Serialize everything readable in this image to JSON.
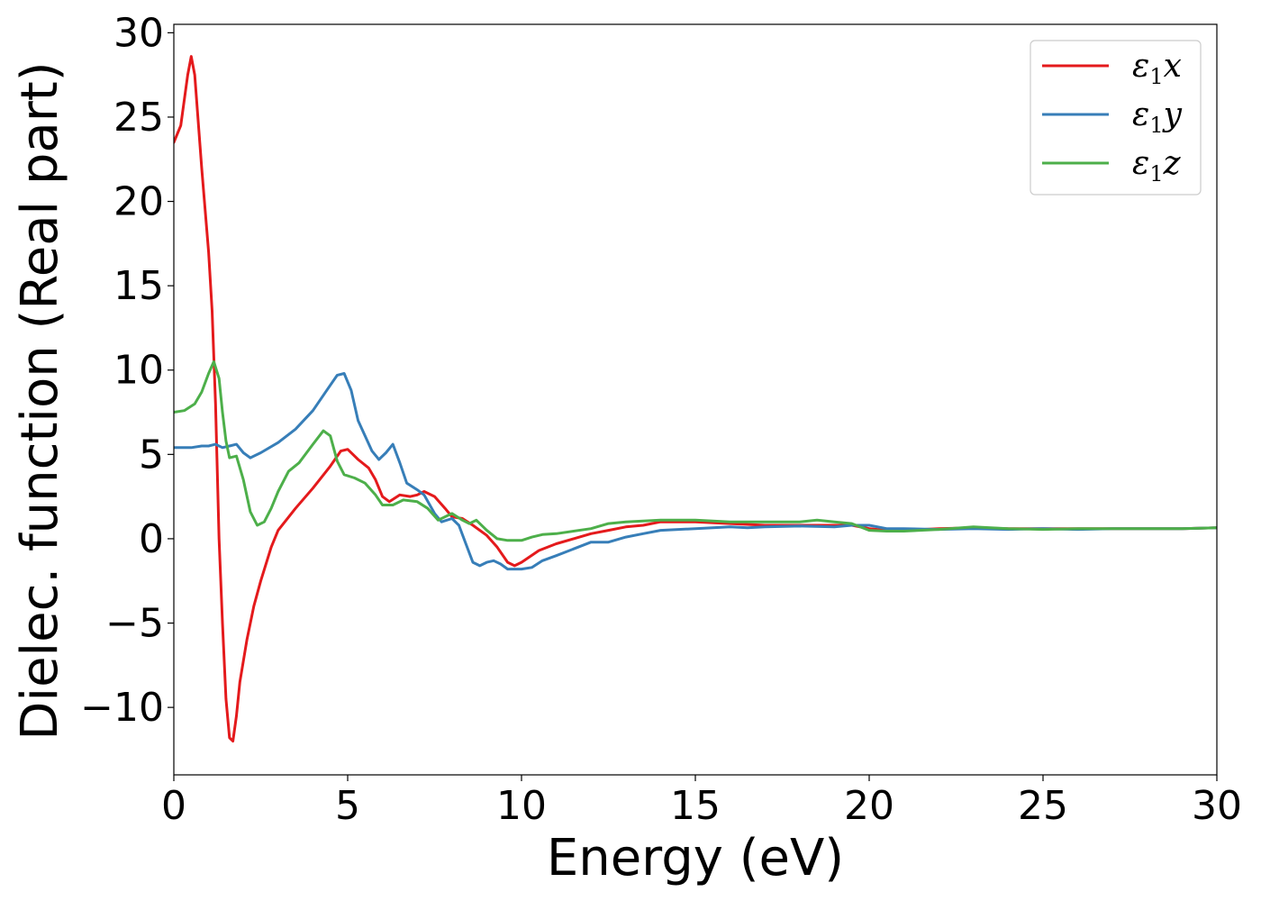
{
  "chart_data": {
    "type": "line",
    "title": "",
    "xlabel": "Energy (eV)",
    "ylabel": "Dielec. function (Real part)",
    "xlim": [
      0,
      30
    ],
    "ylim": [
      -14,
      30.5
    ],
    "xticks": [
      0,
      5,
      10,
      15,
      20,
      25,
      30
    ],
    "xtick_labels": [
      "0",
      "5",
      "10",
      "15",
      "20",
      "25",
      "30"
    ],
    "yticks": [
      -10,
      -5,
      0,
      5,
      10,
      15,
      20,
      25,
      30
    ],
    "ytick_labels": [
      "−10",
      "−5",
      "0",
      "5",
      "10",
      "15",
      "20",
      "25",
      "30"
    ],
    "grid": false,
    "legend_position": "top-right",
    "series": [
      {
        "name": "ε1x",
        "base": "ε",
        "sub": "1",
        "var": "x",
        "color": "#e41a1c",
        "points": [
          [
            0,
            23.5
          ],
          [
            0.2,
            24.5
          ],
          [
            0.4,
            27.5
          ],
          [
            0.5,
            28.6
          ],
          [
            0.6,
            27.5
          ],
          [
            0.8,
            22
          ],
          [
            1.0,
            17
          ],
          [
            1.1,
            13.5
          ],
          [
            1.2,
            8
          ],
          [
            1.3,
            0
          ],
          [
            1.4,
            -5
          ],
          [
            1.5,
            -9.5
          ],
          [
            1.6,
            -11.8
          ],
          [
            1.7,
            -12
          ],
          [
            1.8,
            -10.5
          ],
          [
            1.9,
            -8.5
          ],
          [
            2.1,
            -6
          ],
          [
            2.3,
            -4
          ],
          [
            2.5,
            -2.5
          ],
          [
            2.8,
            -0.5
          ],
          [
            3.0,
            0.5
          ],
          [
            3.5,
            1.8
          ],
          [
            4.0,
            3.0
          ],
          [
            4.5,
            4.3
          ],
          [
            4.8,
            5.2
          ],
          [
            5.0,
            5.3
          ],
          [
            5.3,
            4.7
          ],
          [
            5.6,
            4.2
          ],
          [
            5.8,
            3.5
          ],
          [
            6.0,
            2.5
          ],
          [
            6.2,
            2.2
          ],
          [
            6.5,
            2.6
          ],
          [
            6.8,
            2.5
          ],
          [
            7.0,
            2.6
          ],
          [
            7.2,
            2.8
          ],
          [
            7.5,
            2.5
          ],
          [
            7.8,
            1.8
          ],
          [
            8.0,
            1.3
          ],
          [
            8.3,
            1.2
          ],
          [
            8.6,
            0.8
          ],
          [
            9.0,
            0.2
          ],
          [
            9.3,
            -0.5
          ],
          [
            9.6,
            -1.4
          ],
          [
            9.8,
            -1.6
          ],
          [
            10.0,
            -1.4
          ],
          [
            10.5,
            -0.7
          ],
          [
            11.0,
            -0.3
          ],
          [
            11.5,
            0
          ],
          [
            12.0,
            0.3
          ],
          [
            12.5,
            0.5
          ],
          [
            13.0,
            0.7
          ],
          [
            13.5,
            0.8
          ],
          [
            14.0,
            1.0
          ],
          [
            15.0,
            1.0
          ],
          [
            16.0,
            0.9
          ],
          [
            17.0,
            0.8
          ],
          [
            18.0,
            0.8
          ],
          [
            19.0,
            0.8
          ],
          [
            19.5,
            0.8
          ],
          [
            20.0,
            0.6
          ],
          [
            20.5,
            0.5
          ],
          [
            21.0,
            0.5
          ],
          [
            22.0,
            0.6
          ],
          [
            23.0,
            0.65
          ],
          [
            24.0,
            0.6
          ],
          [
            25.0,
            0.6
          ],
          [
            26.0,
            0.6
          ],
          [
            27.0,
            0.6
          ],
          [
            28.0,
            0.6
          ],
          [
            29.0,
            0.6
          ],
          [
            30.0,
            0.65
          ]
        ]
      },
      {
        "name": "ε1y",
        "base": "ε",
        "sub": "1",
        "var": "y",
        "color": "#377eb8",
        "points": [
          [
            0,
            5.4
          ],
          [
            0.5,
            5.4
          ],
          [
            0.8,
            5.5
          ],
          [
            1.0,
            5.5
          ],
          [
            1.2,
            5.6
          ],
          [
            1.4,
            5.4
          ],
          [
            1.6,
            5.5
          ],
          [
            1.8,
            5.6
          ],
          [
            2.0,
            5.1
          ],
          [
            2.2,
            4.8
          ],
          [
            2.5,
            5.1
          ],
          [
            3.0,
            5.7
          ],
          [
            3.5,
            6.5
          ],
          [
            4.0,
            7.6
          ],
          [
            4.4,
            8.8
          ],
          [
            4.7,
            9.7
          ],
          [
            4.9,
            9.8
          ],
          [
            5.1,
            8.8
          ],
          [
            5.3,
            7.0
          ],
          [
            5.5,
            6.1
          ],
          [
            5.7,
            5.2
          ],
          [
            5.9,
            4.7
          ],
          [
            6.1,
            5.1
          ],
          [
            6.3,
            5.6
          ],
          [
            6.5,
            4.5
          ],
          [
            6.7,
            3.3
          ],
          [
            7.0,
            2.9
          ],
          [
            7.2,
            2.6
          ],
          [
            7.5,
            1.5
          ],
          [
            7.7,
            1.0
          ],
          [
            8.0,
            1.2
          ],
          [
            8.2,
            0.8
          ],
          [
            8.4,
            -0.3
          ],
          [
            8.6,
            -1.4
          ],
          [
            8.8,
            -1.6
          ],
          [
            9.0,
            -1.4
          ],
          [
            9.2,
            -1.3
          ],
          [
            9.4,
            -1.5
          ],
          [
            9.6,
            -1.8
          ],
          [
            9.8,
            -1.8
          ],
          [
            10.0,
            -1.8
          ],
          [
            10.3,
            -1.7
          ],
          [
            10.6,
            -1.3
          ],
          [
            11.0,
            -1.0
          ],
          [
            11.5,
            -0.6
          ],
          [
            12.0,
            -0.2
          ],
          [
            12.5,
            -0.2
          ],
          [
            13.0,
            0.1
          ],
          [
            13.5,
            0.3
          ],
          [
            14.0,
            0.5
          ],
          [
            15.0,
            0.6
          ],
          [
            16.0,
            0.7
          ],
          [
            16.5,
            0.65
          ],
          [
            17.0,
            0.7
          ],
          [
            18.0,
            0.75
          ],
          [
            19.0,
            0.7
          ],
          [
            19.5,
            0.8
          ],
          [
            20.0,
            0.8
          ],
          [
            20.5,
            0.6
          ],
          [
            21.0,
            0.6
          ],
          [
            22.0,
            0.55
          ],
          [
            23.0,
            0.6
          ],
          [
            24.0,
            0.55
          ],
          [
            25.0,
            0.6
          ],
          [
            26.0,
            0.55
          ],
          [
            27.0,
            0.6
          ],
          [
            28.0,
            0.6
          ],
          [
            29.0,
            0.6
          ],
          [
            30.0,
            0.65
          ]
        ]
      },
      {
        "name": "ε1z",
        "base": "ε",
        "sub": "1",
        "var": "z",
        "color": "#4daf4a",
        "points": [
          [
            0,
            7.5
          ],
          [
            0.3,
            7.6
          ],
          [
            0.6,
            8.0
          ],
          [
            0.8,
            8.7
          ],
          [
            1.0,
            9.8
          ],
          [
            1.15,
            10.5
          ],
          [
            1.3,
            9.5
          ],
          [
            1.4,
            7.5
          ],
          [
            1.5,
            5.8
          ],
          [
            1.6,
            4.8
          ],
          [
            1.8,
            4.9
          ],
          [
            2.0,
            3.5
          ],
          [
            2.2,
            1.6
          ],
          [
            2.4,
            0.8
          ],
          [
            2.6,
            1.0
          ],
          [
            2.8,
            1.8
          ],
          [
            3.0,
            2.8
          ],
          [
            3.3,
            4.0
          ],
          [
            3.6,
            4.5
          ],
          [
            4.0,
            5.6
          ],
          [
            4.3,
            6.4
          ],
          [
            4.5,
            6.1
          ],
          [
            4.7,
            4.6
          ],
          [
            4.9,
            3.8
          ],
          [
            5.2,
            3.6
          ],
          [
            5.5,
            3.3
          ],
          [
            5.8,
            2.6
          ],
          [
            6.0,
            2.0
          ],
          [
            6.3,
            2.0
          ],
          [
            6.6,
            2.3
          ],
          [
            7.0,
            2.2
          ],
          [
            7.3,
            1.8
          ],
          [
            7.6,
            1.1
          ],
          [
            8.0,
            1.5
          ],
          [
            8.3,
            1.1
          ],
          [
            8.5,
            0.9
          ],
          [
            8.7,
            1.1
          ],
          [
            9.0,
            0.5
          ],
          [
            9.3,
            0.0
          ],
          [
            9.6,
            -0.1
          ],
          [
            10.0,
            -0.1
          ],
          [
            10.3,
            0.1
          ],
          [
            10.6,
            0.25
          ],
          [
            11.0,
            0.3
          ],
          [
            12.0,
            0.6
          ],
          [
            12.5,
            0.9
          ],
          [
            13.0,
            1.0
          ],
          [
            14.0,
            1.1
          ],
          [
            15.0,
            1.1
          ],
          [
            16.0,
            1.0
          ],
          [
            17.0,
            1.0
          ],
          [
            18.0,
            1.0
          ],
          [
            18.5,
            1.1
          ],
          [
            19.0,
            1.0
          ],
          [
            19.5,
            0.9
          ],
          [
            20.0,
            0.5
          ],
          [
            20.5,
            0.45
          ],
          [
            21.0,
            0.45
          ],
          [
            22.0,
            0.55
          ],
          [
            23.0,
            0.7
          ],
          [
            24.0,
            0.6
          ],
          [
            25.0,
            0.55
          ],
          [
            26.0,
            0.6
          ],
          [
            27.0,
            0.6
          ],
          [
            28.0,
            0.6
          ],
          [
            29.0,
            0.6
          ],
          [
            30.0,
            0.65
          ]
        ]
      }
    ]
  }
}
